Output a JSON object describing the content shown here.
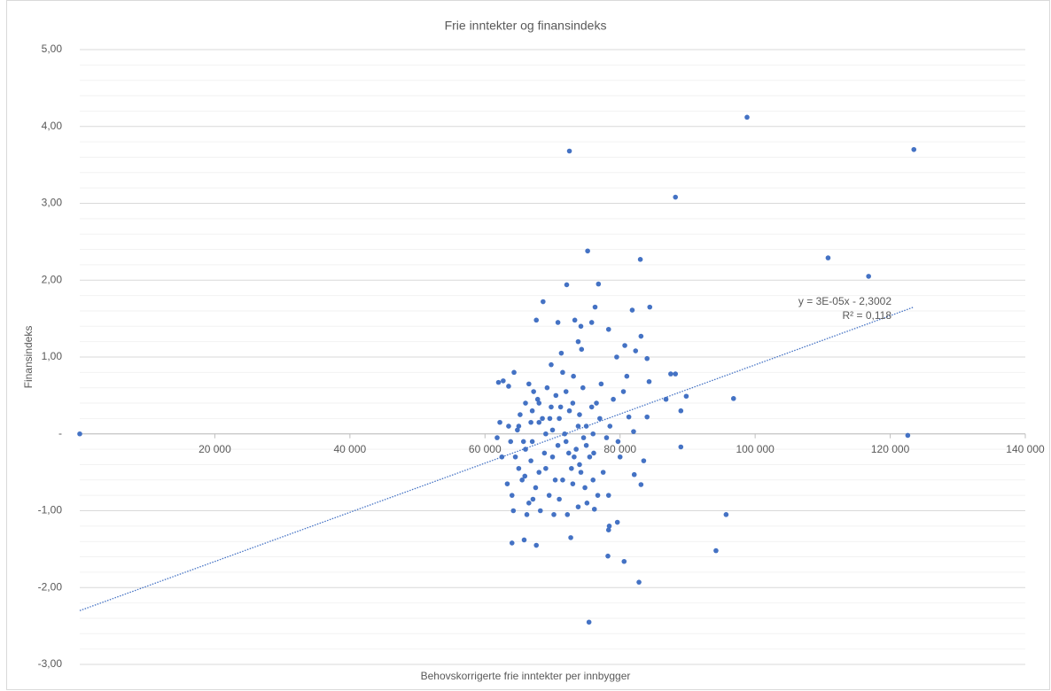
{
  "chart_data": {
    "type": "scatter",
    "title": "Frie inntekter og finansindeks",
    "x_label": "Behovskorrigerte frie inntekter per innbygger",
    "y_label": "Finansindeks",
    "color": "#4472c4",
    "grid": true,
    "xlim": [
      0,
      140000
    ],
    "ylim": [
      -3,
      5
    ],
    "xticks": [
      {
        "value": 20000,
        "label": "20 000"
      },
      {
        "value": 40000,
        "label": "40 000"
      },
      {
        "value": 60000,
        "label": "60 000"
      },
      {
        "value": 80000,
        "label": "80 000"
      },
      {
        "value": 100000,
        "label": "100 000"
      },
      {
        "value": 120000,
        "label": "120 000"
      },
      {
        "value": 140000,
        "label": "140 000"
      }
    ],
    "yticks": [
      {
        "value": 5,
        "label": "5,00"
      },
      {
        "value": 4,
        "label": "4,00"
      },
      {
        "value": 3,
        "label": "3,00"
      },
      {
        "value": 2,
        "label": "2,00"
      },
      {
        "value": 1,
        "label": "1,00"
      },
      {
        "value": 0,
        "label": "-"
      },
      {
        "value": -1,
        "label": "-1,00"
      },
      {
        "value": -2,
        "label": "-2,00"
      },
      {
        "value": -3,
        "label": "-3,00"
      }
    ],
    "yminorticks": [
      4.8,
      4.6,
      4.4,
      4.2,
      3.8,
      3.6,
      3.4,
      3.2,
      2.8,
      2.6,
      2.4,
      2.2,
      1.8,
      1.6,
      1.4,
      1.2,
      0.8,
      0.6,
      0.4,
      0.2,
      -0.2,
      -0.4,
      -0.6,
      -0.8,
      -1.2,
      -1.4,
      -1.6,
      -1.8,
      -2.2,
      -2.4,
      -2.6,
      -2.8
    ],
    "trendline": {
      "x": [
        0,
        123500
      ],
      "y": [
        -2.3002,
        1.65
      ],
      "label": [
        "y = 3E-05x - 2,3002",
        "R² = 0,118"
      ]
    },
    "x": [
      0,
      98800,
      123500,
      72500,
      88200,
      75200,
      83000,
      110800,
      116800,
      122600,
      96800,
      95700,
      94200,
      75400,
      82800,
      80600,
      78200,
      89000,
      89800,
      89000,
      87500,
      88200,
      86800,
      84400,
      81800,
      84000,
      84300,
      83100,
      82300,
      81000,
      80700,
      79500,
      78300,
      76800,
      72100,
      68600,
      67600,
      70800,
      73300,
      76300,
      75800,
      74200,
      73800,
      74300,
      71300,
      69800,
      66500,
      62000,
      62700,
      63500,
      64300,
      62200,
      61800,
      62500,
      63300,
      64200,
      64000,
      65800,
      67600,
      72700,
      73800,
      76200,
      78400,
      78300,
      79600,
      78300,
      76700,
      82100,
      83100,
      83500,
      84000,
      82000,
      81300,
      80500,
      79700,
      80000,
      65000,
      66000,
      67000,
      68000,
      69000,
      70000,
      71000,
      72000,
      73000,
      74000,
      75000,
      76000,
      77000,
      64500,
      65500,
      66500,
      67500,
      68500,
      69500,
      70500,
      71500,
      72500,
      73500,
      74500,
      75500,
      76500,
      77500,
      64000,
      65000,
      66000,
      67000,
      68000,
      69000,
      70000,
      71000,
      72000,
      73000,
      74000,
      75000,
      76000,
      64800,
      65700,
      66800,
      67800,
      68800,
      69800,
      70800,
      71800,
      72800,
      73800,
      74800,
      75800,
      63800,
      63500,
      66200,
      68200,
      70200,
      72200,
      74200,
      65200,
      67200,
      69200,
      71200,
      73200,
      77200,
      78500,
      79000,
      78000,
      71500,
      68000,
      66800,
      69600,
      72400,
      70400,
      74600,
      65900,
      67100,
      73100,
      75100,
      76100
    ],
    "y": [
      0,
      4.12,
      3.7,
      3.68,
      3.08,
      2.38,
      2.27,
      2.29,
      2.05,
      -0.02,
      0.46,
      -1.05,
      -1.52,
      -2.45,
      -1.93,
      -1.66,
      -1.59,
      -0.17,
      0.49,
      0.3,
      0.78,
      0.78,
      0.45,
      1.65,
      1.61,
      0.98,
      0.68,
      1.27,
      1.08,
      0.75,
      1.15,
      1,
      1.36,
      1.95,
      1.94,
      1.72,
      1.48,
      1.45,
      1.48,
      1.65,
      1.45,
      1.4,
      1.2,
      1.1,
      1.05,
      0.9,
      0.65,
      0.67,
      0.69,
      0.62,
      0.8,
      0.15,
      -0.05,
      -0.3,
      -0.65,
      -1,
      -1.42,
      -1.38,
      -1.45,
      -1.35,
      -0.95,
      -0.98,
      -1.2,
      -1.25,
      -1.15,
      -0.8,
      -0.8,
      -0.53,
      -0.66,
      -0.35,
      0.22,
      0.03,
      0.22,
      0.55,
      -0.1,
      -0.3,
      0.1,
      -0.2,
      0.3,
      -0.5,
      0,
      -0.3,
      0.2,
      -0.1,
      0.4,
      -0.4,
      0.1,
      -0.6,
      0.2,
      -0.3,
      -0.6,
      -0.9,
      -0.7,
      0.2,
      -0.8,
      0.5,
      -0.6,
      0.3,
      -0.2,
      0.6,
      -0.3,
      0.4,
      -0.5,
      -0.8,
      -0.45,
      0.4,
      -0.1,
      0.15,
      -0.45,
      0.05,
      -0.85,
      0.55,
      -0.65,
      0.25,
      -0.15,
      0,
      0.05,
      -0.1,
      -0.35,
      0.45,
      -0.25,
      0.35,
      -0.15,
      0,
      -0.45,
      0.1,
      -0.7,
      0.35,
      -0.1,
      0.1,
      -1.05,
      -1,
      -1.05,
      -1.05,
      -0.5,
      0.25,
      0.55,
      0.6,
      0.35,
      -0.3,
      0.65,
      0.1,
      0.45,
      -0.05,
      0.8,
      0.4,
      0.15,
      0.2,
      -0.25,
      -0.6,
      -0.05,
      -0.55,
      -0.85,
      0.75,
      -0.9,
      -0.25
    ]
  }
}
